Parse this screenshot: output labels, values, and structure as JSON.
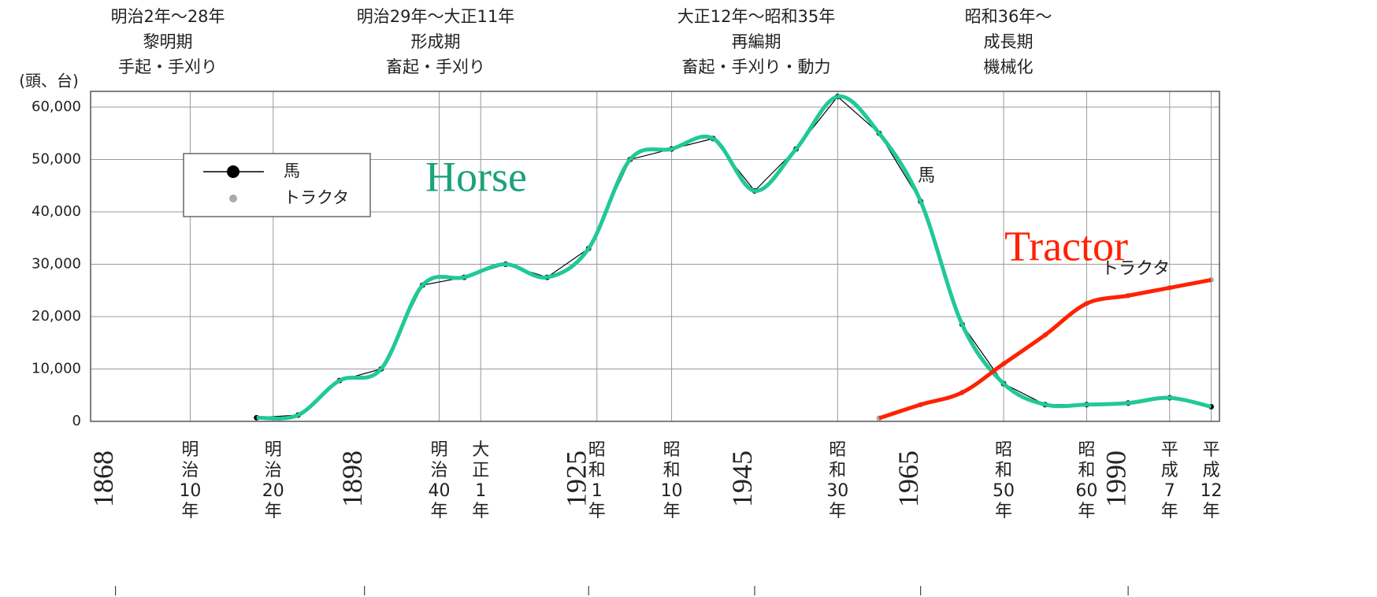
{
  "chart_data": {
    "type": "line",
    "y_axis_label": "(頭、台)",
    "periods": [
      {
        "range": "明治2年～28年",
        "name": "黎明期",
        "method": "手起・手刈り"
      },
      {
        "range": "明治29年～大正11年",
        "name": "形成期",
        "method": "畜起・手刈り"
      },
      {
        "range": "大正12年～昭和35年",
        "name": "再編期",
        "method": "畜起・手刈り・動力"
      },
      {
        "range": "昭和36年～",
        "name": "成長期",
        "method": "機械化"
      }
    ],
    "annotations": [
      "Horse",
      "Tractor",
      "馬",
      "トラクタ"
    ],
    "x": [
      1885,
      1890,
      1895,
      1900,
      1905,
      1910,
      1915,
      1920,
      1925,
      1930,
      1935,
      1940,
      1945,
      1950,
      1955,
      1960,
      1965,
      1970,
      1975,
      1980,
      1985,
      1990,
      1995,
      2000
    ],
    "series": [
      {
        "name": "馬",
        "color": "#20c997",
        "marker_color": "#000000",
        "values": [
          700,
          1200,
          7800,
          10000,
          26000,
          27500,
          30000,
          27500,
          33000,
          50000,
          52000,
          54000,
          44000,
          52000,
          62000,
          55000,
          42000,
          18500,
          7200,
          3200,
          3200,
          3500,
          4500,
          2800
        ]
      },
      {
        "name": "トラクタ",
        "color": "#ff2200",
        "marker_color": "#aaaaaa",
        "values": [
          null,
          null,
          null,
          null,
          null,
          null,
          null,
          null,
          null,
          null,
          null,
          null,
          null,
          null,
          null,
          600,
          3200,
          5500,
          11000,
          16500,
          22500,
          24000,
          25500,
          27000
        ]
      }
    ],
    "xlim": [
      1865,
      2001
    ],
    "xticks": [
      {
        "value": 1877,
        "label": "明治10年"
      },
      {
        "value": 1887,
        "label": "明治20年"
      },
      {
        "value": 1907,
        "label": "明治40年"
      },
      {
        "value": 1912,
        "label": "大正1年"
      },
      {
        "value": 1926,
        "label": "昭和1年"
      },
      {
        "value": 1935,
        "label": "昭和10年"
      },
      {
        "value": 1955,
        "label": "昭和30年"
      },
      {
        "value": 1975,
        "label": "昭和50年"
      },
      {
        "value": 1985,
        "label": "昭和60年"
      },
      {
        "value": 1995,
        "label": "平成7年"
      },
      {
        "value": 2000,
        "label": "平成12年"
      }
    ],
    "year_ticks": [
      1868,
      1898,
      1925,
      1945,
      1965,
      1990
    ],
    "ylim": [
      0,
      63000
    ],
    "yticks": [
      0,
      {
        "value": 10000,
        "label": "10,000"
      },
      {
        "value": 20000,
        "label": "20,000"
      },
      {
        "value": 30000,
        "label": "30,000"
      },
      {
        "value": 40000,
        "label": "40,000"
      },
      {
        "value": 50000,
        "label": "50,000"
      },
      {
        "value": 60000,
        "label": "60,000"
      }
    ],
    "grid": true,
    "legend": "upper left"
  }
}
